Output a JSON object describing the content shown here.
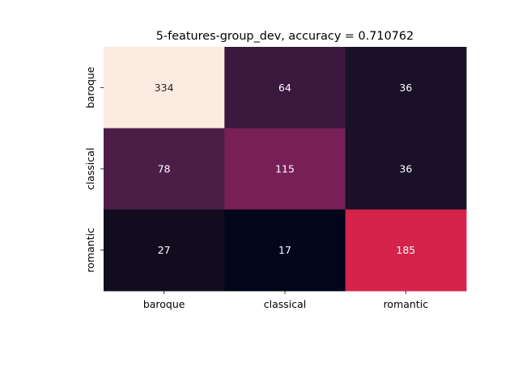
{
  "chart_data": {
    "type": "heatmap",
    "title": "5-features-group_dev, accuracy = 0.710762",
    "xlabel": "",
    "ylabel": "",
    "x_categories": [
      "baroque",
      "classical",
      "romantic"
    ],
    "y_categories": [
      "baroque",
      "classical",
      "romantic"
    ],
    "values": [
      [
        334,
        64,
        36
      ],
      [
        78,
        115,
        36
      ],
      [
        27,
        17,
        185
      ]
    ],
    "color_map": "rocket",
    "value_range": [
      17,
      334
    ],
    "annotations": true,
    "colorbar": false,
    "grid": false,
    "legend": "none",
    "cell_colors": [
      [
        "#fbebe0",
        "#3b193f",
        "#1a1128"
      ],
      [
        "#4b1e48",
        "#791f58",
        "#1a1128"
      ],
      [
        "#120c1f",
        "#03051a",
        "#d6234a"
      ]
    ],
    "text_colors": [
      [
        "#262626",
        "#ffffff",
        "#ffffff"
      ],
      [
        "#ffffff",
        "#ffffff",
        "#ffffff"
      ],
      [
        "#ffffff",
        "#ffffff",
        "#ffffff"
      ]
    ]
  }
}
